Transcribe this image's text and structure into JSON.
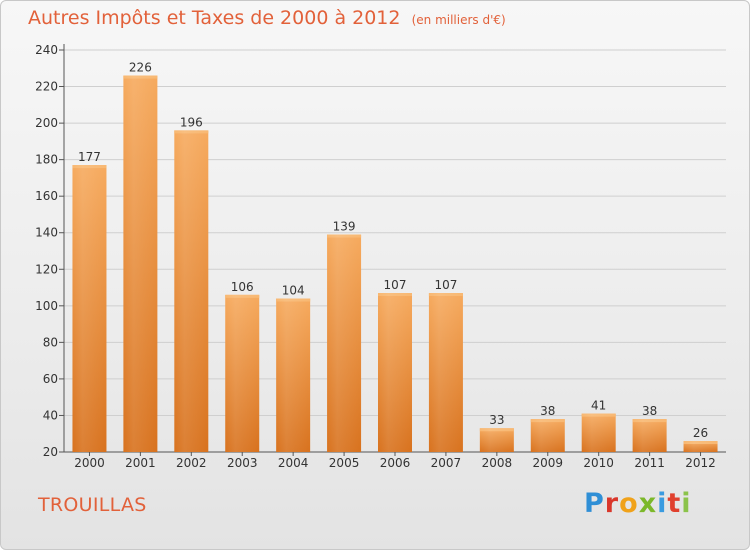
{
  "header": {
    "title": "Autres Impôts et Taxes de 2000 à 2012",
    "unit": "(en milliers d'€)"
  },
  "commune": "TROUILLAS",
  "logo": {
    "letters": [
      "P",
      "r",
      "o",
      "x",
      "i",
      "t",
      "i"
    ]
  },
  "colors": {
    "title": "#e2613a",
    "bar_top": "#f5a75a",
    "bar_bottom": "#d9731f",
    "grid": "#cccccc"
  },
  "chart_data": {
    "type": "bar",
    "categories": [
      "2000",
      "2001",
      "2002",
      "2003",
      "2004",
      "2005",
      "2006",
      "2007",
      "2008",
      "2009",
      "2010",
      "2011",
      "2012"
    ],
    "values": [
      177,
      226,
      196,
      106,
      104,
      139,
      107,
      107,
      33,
      38,
      41,
      38,
      26
    ],
    "yticks": [
      20,
      40,
      60,
      80,
      100,
      120,
      140,
      160,
      180,
      200,
      220,
      240
    ],
    "ylim": [
      20,
      240
    ],
    "grid": true,
    "title": "Autres Impôts et Taxes de 2000 à 2012",
    "xlabel": "",
    "ylabel": ""
  }
}
